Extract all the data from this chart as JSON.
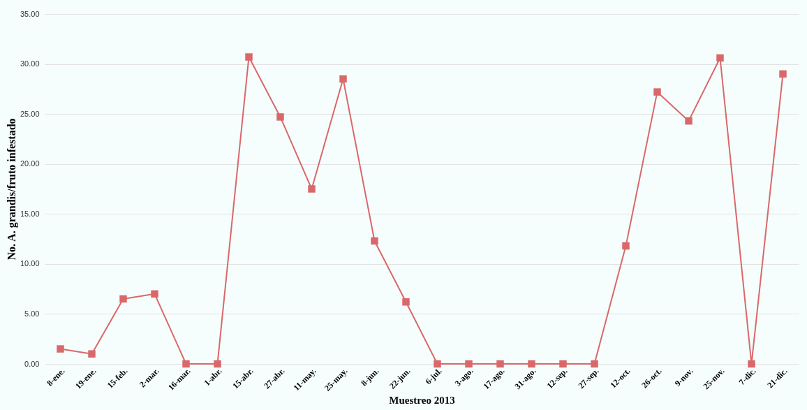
{
  "chart_data": {
    "type": "line",
    "xlabel": "Muestreo 2013",
    "ylabel": "No. A. grandis/fruto infestado",
    "categories": [
      "8-ene.",
      "19-ene.",
      "15-feb.",
      "2-mar.",
      "16-mar.",
      "1-abr.",
      "15-abr.",
      "27-abr.",
      "11-may.",
      "25-may.",
      "8-jun.",
      "22-jun.",
      "6-jul.",
      "3-ago.",
      "17-ago.",
      "31-ago.",
      "12-sep.",
      "27-sep.",
      "12-oct.",
      "26-oct.",
      "9-nov.",
      "25-nov.",
      "7-dic.",
      "21-dic."
    ],
    "series": [
      {
        "color": "#d9686a",
        "values": [
          1.5,
          1.0,
          6.5,
          7.0,
          0,
          0,
          30.7,
          24.7,
          17.5,
          28.5,
          12.3,
          6.2,
          0,
          0,
          0,
          0,
          0,
          0,
          11.8,
          27.2,
          24.3,
          30.6,
          0,
          29.0
        ]
      }
    ],
    "ylim": [
      0,
      35
    ],
    "yticks": [
      {
        "value": 0,
        "label": "0.00"
      },
      {
        "value": 5,
        "label": "5.00"
      },
      {
        "value": 10,
        "label": "10.00"
      },
      {
        "value": 15,
        "label": "15.00"
      },
      {
        "value": 20,
        "label": "20.00"
      },
      {
        "value": 25,
        "label": "25.00"
      },
      {
        "value": 30,
        "label": "30.00"
      },
      {
        "value": 35,
        "label": "35.00"
      }
    ],
    "grid": "y",
    "marker": "square",
    "line_style": "solid",
    "legend": false
  }
}
